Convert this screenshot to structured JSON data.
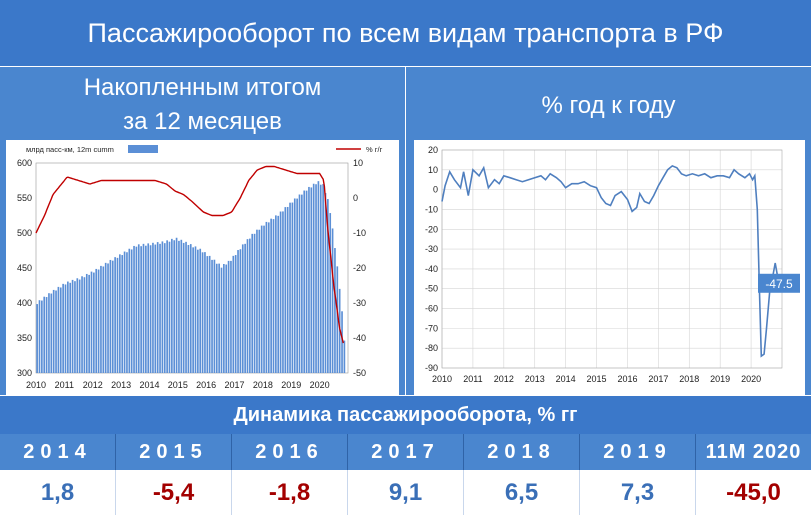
{
  "header": {
    "title": "Пассажирооборот по всем видам транспорта в РФ"
  },
  "left_panel": {
    "title_line1": "Накопленным итогом",
    "title_line2": "за 12 месяцев"
  },
  "right_panel": {
    "title": "% год к году"
  },
  "colors": {
    "banner": "#3b78c9",
    "panel": "#4a86cf",
    "bars": "#5b8fd6",
    "line_red": "#c00000",
    "line_blue": "#4f7fbf",
    "positive": "#3a6fb7",
    "negative": "#a30000"
  },
  "chart_data": [
    {
      "type": "bar",
      "legend_bars": "млрд пасс-км, 12m cumm",
      "legend_line": "% г/г",
      "x_tick_labels": [
        "2010",
        "2011",
        "2012",
        "2013",
        "2014",
        "2015",
        "2016",
        "2017",
        "2018",
        "2019",
        "2020"
      ],
      "y_left_ticks": [
        "600",
        "550",
        "500",
        "450",
        "400",
        "350",
        "300"
      ],
      "y_right_ticks": [
        "10",
        "0",
        "-10",
        "-20",
        "-30",
        "-40",
        "-50"
      ],
      "ylim_left": [
        300,
        600
      ],
      "ylim_right": [
        -50,
        10
      ],
      "grid": false,
      "bar_anchors": [
        [
          2010.0,
          400
        ],
        [
          2010.5,
          415
        ],
        [
          2011.0,
          428
        ],
        [
          2011.5,
          435
        ],
        [
          2012.0,
          445
        ],
        [
          2012.5,
          458
        ],
        [
          2013.0,
          470
        ],
        [
          2013.5,
          482
        ],
        [
          2014.0,
          484
        ],
        [
          2014.5,
          487
        ],
        [
          2014.9,
          492
        ],
        [
          2015.3,
          485
        ],
        [
          2015.8,
          475
        ],
        [
          2016.2,
          462
        ],
        [
          2016.5,
          452
        ],
        [
          2016.8,
          460
        ],
        [
          2017.2,
          480
        ],
        [
          2017.6,
          498
        ],
        [
          2018.0,
          512
        ],
        [
          2018.5,
          526
        ],
        [
          2019.0,
          545
        ],
        [
          2019.5,
          562
        ],
        [
          2019.9,
          573
        ],
        [
          2020.1,
          568
        ],
        [
          2020.3,
          540
        ],
        [
          2020.5,
          480
        ],
        [
          2020.7,
          410
        ],
        [
          2020.85,
          340
        ]
      ],
      "line_anchors": [
        [
          2010.0,
          -10
        ],
        [
          2010.3,
          -5
        ],
        [
          2010.6,
          1
        ],
        [
          2010.9,
          4
        ],
        [
          2011.1,
          6
        ],
        [
          2011.5,
          5
        ],
        [
          2011.9,
          4
        ],
        [
          2012.3,
          5
        ],
        [
          2012.7,
          5
        ],
        [
          2013.1,
          5
        ],
        [
          2013.5,
          5
        ],
        [
          2013.9,
          5
        ],
        [
          2014.2,
          5
        ],
        [
          2014.6,
          4
        ],
        [
          2014.9,
          2
        ],
        [
          2015.2,
          1
        ],
        [
          2015.5,
          -1
        ],
        [
          2015.9,
          -4
        ],
        [
          2016.2,
          -5
        ],
        [
          2016.6,
          -5
        ],
        [
          2016.9,
          -4
        ],
        [
          2017.2,
          0
        ],
        [
          2017.5,
          5
        ],
        [
          2017.8,
          8
        ],
        [
          2018.1,
          9
        ],
        [
          2018.4,
          9
        ],
        [
          2018.8,
          8
        ],
        [
          2019.2,
          7
        ],
        [
          2019.6,
          7
        ],
        [
          2020.0,
          7
        ],
        [
          2020.15,
          5
        ],
        [
          2020.3,
          -10
        ],
        [
          2020.5,
          -25
        ],
        [
          2020.7,
          -37
        ],
        [
          2020.85,
          -42
        ]
      ]
    },
    {
      "type": "line",
      "x_tick_labels": [
        "2010",
        "2011",
        "2012",
        "2013",
        "2014",
        "2015",
        "2016",
        "2017",
        "2018",
        "2019",
        "2020"
      ],
      "y_ticks": [
        "20",
        "10",
        "0",
        "-10",
        "-20",
        "-30",
        "-40",
        "-50",
        "-60",
        "-70",
        "-80",
        "-90"
      ],
      "ylim": [
        -90,
        20
      ],
      "grid": true,
      "last_value_label": "-47.5",
      "series_anchors": [
        [
          2010.0,
          -6
        ],
        [
          2010.1,
          2
        ],
        [
          2010.25,
          9
        ],
        [
          2010.4,
          5
        ],
        [
          2010.6,
          1
        ],
        [
          2010.7,
          9
        ],
        [
          2010.85,
          -3
        ],
        [
          2011.0,
          10
        ],
        [
          2011.2,
          7
        ],
        [
          2011.35,
          11
        ],
        [
          2011.5,
          1
        ],
        [
          2011.7,
          5
        ],
        [
          2011.85,
          3
        ],
        [
          2012.0,
          7
        ],
        [
          2012.2,
          6
        ],
        [
          2012.4,
          5
        ],
        [
          2012.6,
          4
        ],
        [
          2012.8,
          5
        ],
        [
          2013.0,
          6
        ],
        [
          2013.2,
          7
        ],
        [
          2013.35,
          5
        ],
        [
          2013.5,
          8
        ],
        [
          2013.7,
          6
        ],
        [
          2013.85,
          4
        ],
        [
          2014.0,
          1
        ],
        [
          2014.2,
          3
        ],
        [
          2014.4,
          3
        ],
        [
          2014.6,
          4
        ],
        [
          2014.8,
          2
        ],
        [
          2015.0,
          1
        ],
        [
          2015.15,
          -4
        ],
        [
          2015.3,
          -7
        ],
        [
          2015.45,
          -8
        ],
        [
          2015.6,
          -3
        ],
        [
          2015.8,
          -1
        ],
        [
          2016.0,
          -5
        ],
        [
          2016.15,
          -11
        ],
        [
          2016.3,
          -9
        ],
        [
          2016.4,
          -2
        ],
        [
          2016.55,
          -6
        ],
        [
          2016.7,
          -7
        ],
        [
          2016.85,
          -3
        ],
        [
          2017.0,
          2
        ],
        [
          2017.15,
          6
        ],
        [
          2017.3,
          10
        ],
        [
          2017.45,
          12
        ],
        [
          2017.6,
          11
        ],
        [
          2017.75,
          8
        ],
        [
          2017.9,
          7
        ],
        [
          2018.1,
          8
        ],
        [
          2018.3,
          7
        ],
        [
          2018.5,
          8
        ],
        [
          2018.7,
          6
        ],
        [
          2018.9,
          7
        ],
        [
          2019.1,
          7
        ],
        [
          2019.3,
          6
        ],
        [
          2019.45,
          10
        ],
        [
          2019.6,
          8
        ],
        [
          2019.8,
          6
        ],
        [
          2019.95,
          8
        ],
        [
          2020.05,
          5
        ],
        [
          2020.12,
          7
        ],
        [
          2020.2,
          -10
        ],
        [
          2020.27,
          -50
        ],
        [
          2020.33,
          -84
        ],
        [
          2020.42,
          -83
        ],
        [
          2020.5,
          -70
        ],
        [
          2020.6,
          -52
        ],
        [
          2020.7,
          -44
        ],
        [
          2020.78,
          -37
        ],
        [
          2020.9,
          -47.5
        ]
      ]
    }
  ],
  "dynamics": {
    "title": "Динамика пассажирооборота, % гг",
    "years": [
      "2014",
      "2015",
      "2016",
      "2017",
      "2018",
      "2019",
      "11М 2020"
    ],
    "values": [
      "1,8",
      "-5,4",
      "-1,8",
      "9,1",
      "6,5",
      "7,3",
      "-45,0"
    ],
    "value_colors": [
      "#3a6fb7",
      "#a30000",
      "#a30000",
      "#3a6fb7",
      "#3a6fb7",
      "#3a6fb7",
      "#a30000"
    ]
  }
}
